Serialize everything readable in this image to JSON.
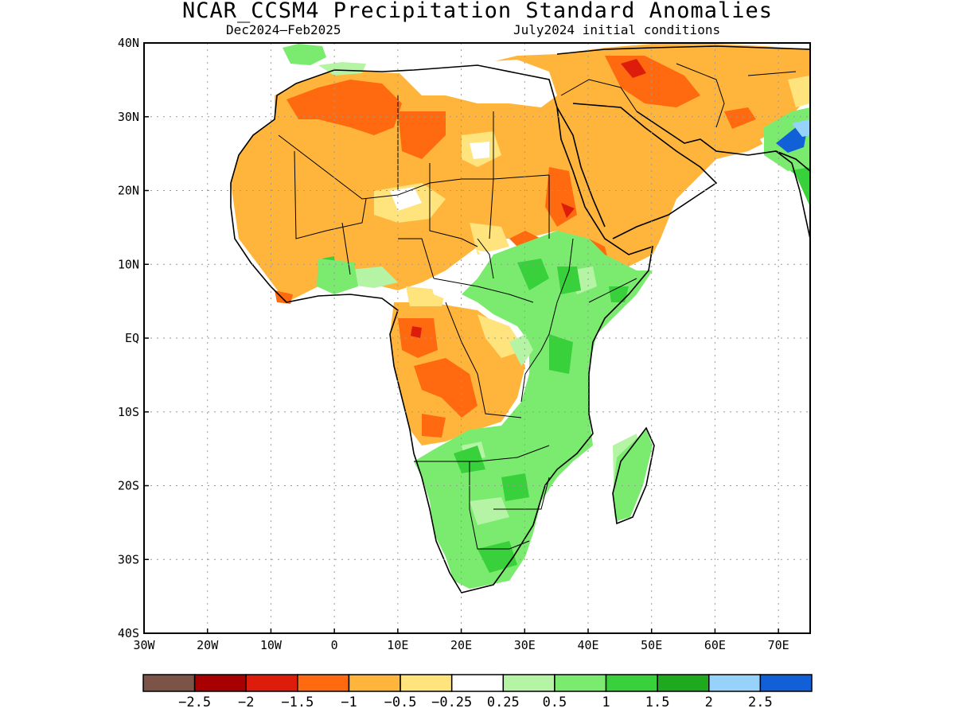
{
  "title": "NCAR_CCSM4 Precipitation Standard Anomalies",
  "subtitle_left": "Dec2024–Feb2025",
  "subtitle_right": "July2024 initial conditions",
  "axes": {
    "lon_labels": [
      "30W",
      "20W",
      "10W",
      "0",
      "10E",
      "20E",
      "30E",
      "40E",
      "50E",
      "60E",
      "70E"
    ],
    "lat_labels": [
      "40N",
      "30N",
      "20N",
      "10N",
      "EQ",
      "10S",
      "20S",
      "30S",
      "40S"
    ],
    "lon_range": [
      -30,
      75
    ],
    "lat_range": [
      -40,
      40
    ],
    "grid": "dotted"
  },
  "colorbar": {
    "colors": [
      "#7b5447",
      "#a80000",
      "#dd1c0c",
      "#ff6a10",
      "#ffb53c",
      "#ffe37d",
      "#ffffff",
      "#b5f4a5",
      "#7aeb6e",
      "#38d03b",
      "#1ea91f",
      "#96d2fa",
      "#1260d8"
    ],
    "labels": [
      "−2.5",
      "−2",
      "−1.5",
      "−1",
      "−0.5",
      "−0.25",
      "0.25",
      "0.5",
      "1",
      "1.5",
      "2",
      "2.5"
    ]
  },
  "colors": {
    "dry_light": "#ffb53c",
    "dry_moderate": "#ff6a10",
    "dry_strong": "#dd1c0c",
    "near_normal": "#ffffff",
    "wet_light": "#b5f4a5",
    "wet_moderate": "#7aeb6e",
    "wet_strong": "#38d03b",
    "very_wet": "#1260d8"
  }
}
